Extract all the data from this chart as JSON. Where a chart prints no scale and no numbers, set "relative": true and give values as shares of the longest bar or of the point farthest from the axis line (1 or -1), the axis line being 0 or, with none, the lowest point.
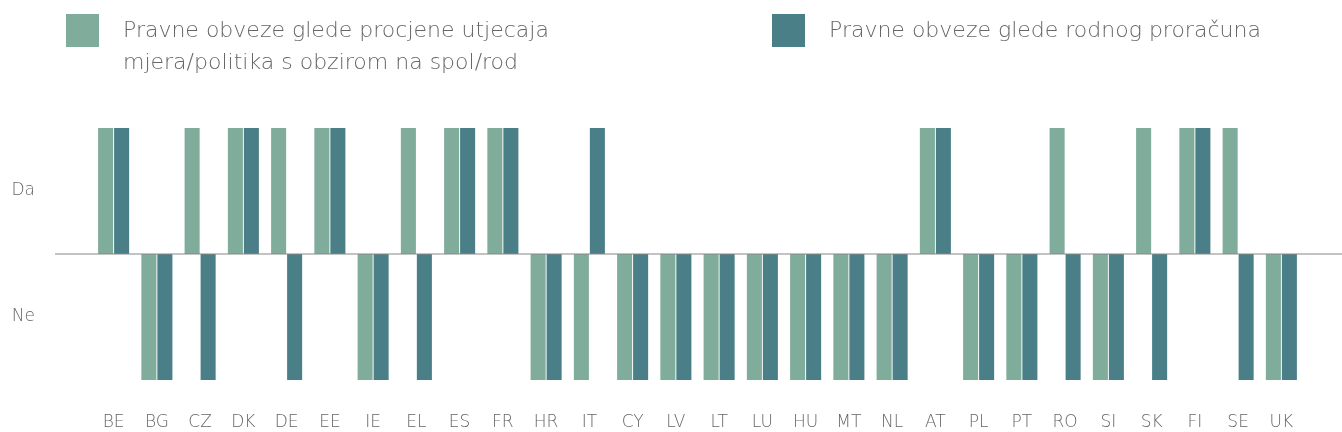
{
  "chart_data": {
    "type": "bar",
    "categories": [
      "BE",
      "BG",
      "CZ",
      "DK",
      "DE",
      "EE",
      "IE",
      "EL",
      "ES",
      "FR",
      "HR",
      "IT",
      "CY",
      "LV",
      "LT",
      "LU",
      "HU",
      "MT",
      "NL",
      "AT",
      "PL",
      "PT",
      "RO",
      "SI",
      "SK",
      "FI",
      "SE",
      "UK"
    ],
    "series": [
      {
        "name": "Pravne obveze glede procjene utjecaja mjera/politika s obzirom na spol/rod",
        "color": "#7fac9b",
        "values": [
          1,
          -1,
          1,
          1,
          1,
          1,
          -1,
          1,
          1,
          1,
          -1,
          -1,
          -1,
          -1,
          -1,
          -1,
          -1,
          -1,
          -1,
          1,
          -1,
          -1,
          1,
          -1,
          1,
          1,
          1,
          -1
        ]
      },
      {
        "name": "Pravne obveze glede rodnog proračuna",
        "color": "#4a7f87",
        "values": [
          1,
          -1,
          -1,
          1,
          -1,
          1,
          -1,
          -1,
          1,
          1,
          -1,
          1,
          -1,
          -1,
          -1,
          -1,
          -1,
          -1,
          -1,
          1,
          -1,
          -1,
          -1,
          -1,
          -1,
          1,
          -1,
          -1
        ]
      }
    ],
    "relative": true,
    "annotations": [
      "Da",
      "Ne"
    ],
    "grid": false,
    "legend": "top"
  }
}
